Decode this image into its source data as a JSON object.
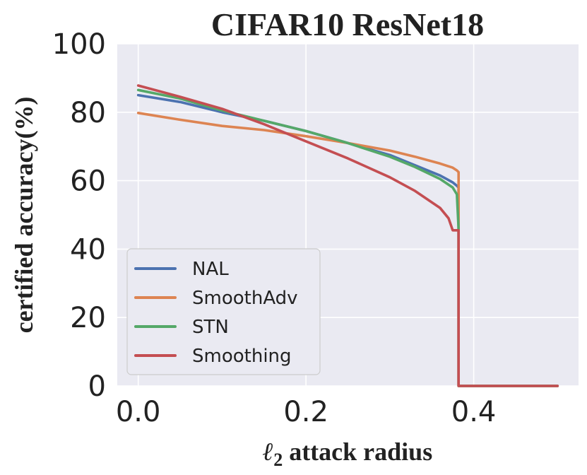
{
  "chart_data": {
    "type": "line",
    "title": "CIFAR10 ResNet18",
    "xlabel_symbol": "ℓ",
    "xlabel_sub": "2",
    "xlabel_rest": " attack radius",
    "ylabel": "certified accuracy(%)",
    "xlim": [
      -0.025,
      0.525
    ],
    "ylim": [
      0,
      100
    ],
    "xticks": [
      0.0,
      0.2,
      0.4
    ],
    "xtick_labels": [
      "0.0",
      "0.2",
      "0.4"
    ],
    "yticks": [
      0,
      20,
      40,
      60,
      80,
      100
    ],
    "ytick_labels": [
      "0",
      "20",
      "40",
      "60",
      "80",
      "100"
    ],
    "grid": true,
    "legend_position": "lower-left",
    "series": [
      {
        "name": "NAL",
        "color": "#4c72b0",
        "points": [
          [
            0.0,
            85.0
          ],
          [
            0.05,
            83.0
          ],
          [
            0.1,
            80.0
          ],
          [
            0.15,
            77.5
          ],
          [
            0.2,
            74.5
          ],
          [
            0.25,
            71.0
          ],
          [
            0.3,
            67.5
          ],
          [
            0.33,
            64.5
          ],
          [
            0.36,
            61.5
          ],
          [
            0.375,
            59.5
          ],
          [
            0.38,
            58.5
          ],
          [
            0.382,
            58.0
          ],
          [
            0.382,
            0.0
          ],
          [
            0.5,
            0.0
          ]
        ]
      },
      {
        "name": "SmoothAdv",
        "color": "#dd8452",
        "points": [
          [
            0.0,
            79.8
          ],
          [
            0.05,
            77.8
          ],
          [
            0.1,
            76.0
          ],
          [
            0.15,
            74.8
          ],
          [
            0.2,
            73.0
          ],
          [
            0.25,
            71.0
          ],
          [
            0.3,
            68.8
          ],
          [
            0.33,
            67.0
          ],
          [
            0.36,
            65.0
          ],
          [
            0.375,
            63.8
          ],
          [
            0.38,
            63.0
          ],
          [
            0.382,
            62.5
          ],
          [
            0.382,
            0.0
          ],
          [
            0.5,
            0.0
          ]
        ]
      },
      {
        "name": "STN",
        "color": "#55a868",
        "points": [
          [
            0.0,
            86.5
          ],
          [
            0.05,
            84.0
          ],
          [
            0.1,
            80.5
          ],
          [
            0.15,
            77.5
          ],
          [
            0.2,
            74.5
          ],
          [
            0.25,
            71.0
          ],
          [
            0.3,
            67.0
          ],
          [
            0.33,
            64.0
          ],
          [
            0.36,
            60.5
          ],
          [
            0.375,
            58.0
          ],
          [
            0.38,
            56.0
          ],
          [
            0.382,
            46.0
          ],
          [
            0.382,
            0.0
          ],
          [
            0.5,
            0.0
          ]
        ]
      },
      {
        "name": "Smoothing",
        "color": "#c44e52",
        "points": [
          [
            0.0,
            87.8
          ],
          [
            0.05,
            84.5
          ],
          [
            0.1,
            81.0
          ],
          [
            0.15,
            76.5
          ],
          [
            0.2,
            71.5
          ],
          [
            0.25,
            66.5
          ],
          [
            0.3,
            61.0
          ],
          [
            0.33,
            57.0
          ],
          [
            0.36,
            52.0
          ],
          [
            0.37,
            49.0
          ],
          [
            0.375,
            45.5
          ],
          [
            0.382,
            45.5
          ],
          [
            0.382,
            0.0
          ],
          [
            0.5,
            0.0
          ]
        ]
      }
    ]
  }
}
